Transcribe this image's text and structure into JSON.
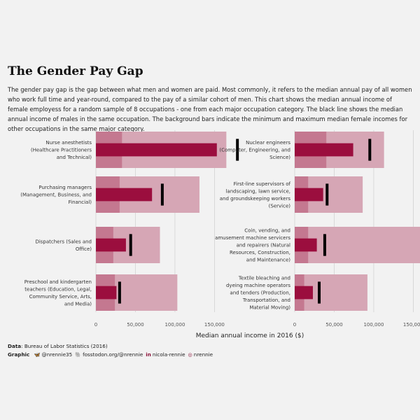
{
  "title": "The Gender Pay Gap",
  "subtitle": "The gender pay gap is the gap between what men and women are paid. Most commonly, it refers to the median annual pay of all women who work full time and year-round, compared to the pay of a similar cohort of men. This chart shows the median annual income of female employess for a random sample of 8 occupations - one from each major occupation category. The black line shows the median annual income of males in the same occupation. The background bars indicate the minimum and maximum median female incomes for other occupations in the same major category.",
  "caption": {
    "data_label": "Data",
    "data_source": ": Bureau of Labor Statistics (2016)",
    "graphic_label": "Graphic",
    "handles": [
      {
        "icon": "bluesky-icon",
        "glyph": "🦋",
        "text": "@nrennie35"
      },
      {
        "icon": "mastodon-icon",
        "glyph": "🐘",
        "text": "fosstodon.org/@nrennie"
      },
      {
        "icon": "linkedin-icon",
        "glyph": "in",
        "text": "nicola-rennie"
      },
      {
        "icon": "github-icon",
        "glyph": "◎",
        "text": "nrennie"
      }
    ]
  },
  "colors": {
    "background": "#f2f2f2",
    "range_bar": "#d6a6b5",
    "inner_bar": "#c47890",
    "female_bar": "#9b0e3e",
    "male_marker": "#000000",
    "grid": "#c8c8c8"
  },
  "chart_data": {
    "type": "bar",
    "xlabel": "Median annual income in 2016 ($)",
    "xlim": [
      0,
      170000
    ],
    "ticks": [
      0,
      50000,
      100000,
      150000
    ],
    "tick_labels": [
      "0",
      "50,000",
      "100,000",
      "150,000"
    ],
    "grid": true,
    "series_description": [
      "female median income (bar)",
      "male median income (black line)",
      "min-max female median in category (background bar)"
    ],
    "panels": [
      {
        "column": 0,
        "occupation": "Nurse anesthetists (Healthcare Practitioners and Technical)",
        "label_lines": [
          "Nurse anesthetists",
          "(Healthcare Practitioners",
          "and Technical)"
        ],
        "female": 153000,
        "male": 179000,
        "cat_min": 33000,
        "cat_max": 165000
      },
      {
        "column": 0,
        "occupation": "Purchasing managers (Management, Business, and Financial)",
        "label_lines": [
          "Purchasing managers",
          "(Management, Business, and",
          "Financial)"
        ],
        "female": 71000,
        "male": 84000,
        "cat_min": 30000,
        "cat_max": 131000
      },
      {
        "column": 0,
        "occupation": "Dispatchers (Sales and Office)",
        "label_lines": [
          "Dispatchers (Sales and",
          "Office)"
        ],
        "female": 38000,
        "male": 44000,
        "cat_min": 22000,
        "cat_max": 81000
      },
      {
        "column": 0,
        "occupation": "Preschool and kindergarten teachers (Education, Legal, Community Service, Arts, and Media)",
        "label_lines": [
          "Preschool and kindergarten",
          "teachers (Education, Legal,",
          "Community Service, Arts,",
          "and Media)"
        ],
        "female": 26000,
        "male": 30000,
        "cat_min": 24000,
        "cat_max": 103000
      },
      {
        "column": 1,
        "occupation": "Nuclear engineers (Computer, Engineering, and Science)",
        "label_lines": [
          "Nuclear engineers",
          "(Computer, Engineering, and",
          "Science)"
        ],
        "female": 74000,
        "male": 95000,
        "cat_min": 40000,
        "cat_max": 113000
      },
      {
        "column": 1,
        "occupation": "First-line supervisors of landscaping, lawn service, and groundskeeping workers (Service)",
        "label_lines": [
          "First-line supervisors of",
          "landscaping, lawn service,",
          "and groundskeeping workers",
          "(Service)"
        ],
        "female": 36000,
        "male": 41000,
        "cat_min": 17000,
        "cat_max": 86000
      },
      {
        "column": 1,
        "occupation": "Coin, vending, and amusement machine servicers and repairers (Natural Resources, Construction, and Maintenance)",
        "label_lines": [
          "Coin, vending, and",
          "amusement machine servicers",
          "and repairers (Natural",
          "Resources, Construction,",
          "and Maintenance)"
        ],
        "female": 28000,
        "male": 38000,
        "cat_min": 17000,
        "cat_max": 161000
      },
      {
        "column": 1,
        "occupation": "Textile bleaching and dyeing machine operators and tenders (Production, Transportation, and Material Moving)",
        "label_lines": [
          "Textile bleaching and",
          "dyeing machine operators",
          "and tenders (Production,",
          "Transportation, and",
          "Material Moving)"
        ],
        "female": 23000,
        "male": 31000,
        "cat_min": 12000,
        "cat_max": 92000
      }
    ]
  }
}
